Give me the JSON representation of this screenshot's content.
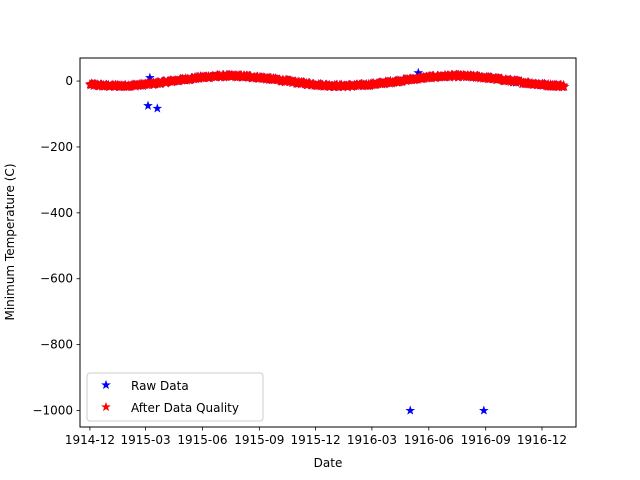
{
  "chart_data": {
    "type": "scatter",
    "xlabel": "Date",
    "ylabel": "Minimum Temperature (C)",
    "xlim": [
      "1914-11-15",
      "1917-01-25"
    ],
    "ylim": [
      -1050,
      70
    ],
    "grid": false,
    "legend_position": "bottom-left",
    "x_ticks": [
      "1914-12",
      "1915-03",
      "1915-06",
      "1915-09",
      "1915-12",
      "1916-03",
      "1916-06",
      "1916-09",
      "1916-12"
    ],
    "y_ticks": [
      0,
      -200,
      -400,
      -600,
      -800,
      -1000
    ],
    "y_tick_labels": [
      "0",
      "−200",
      "−400",
      "−600",
      "−800",
      "−1000"
    ],
    "series": [
      {
        "name": "Raw Data",
        "color": "#0000ff",
        "marker": "star",
        "daily_range": [
          "1914-12-01",
          "1917-01-06"
        ],
        "baseline": "same as After Data Quality",
        "outliers": [
          {
            "x": "1915-03-05",
            "y": -75
          },
          {
            "x": "1915-03-08",
            "y": 10
          },
          {
            "x": "1915-03-20",
            "y": -83
          },
          {
            "x": "1916-05-02",
            "y": -1000
          },
          {
            "x": "1916-05-15",
            "y": 25
          },
          {
            "x": "1916-08-29",
            "y": -1000
          },
          {
            "x": "1916-10-20",
            "y": -5
          }
        ]
      },
      {
        "name": "After Data Quality",
        "color": "#ff0000",
        "marker": "star",
        "daily_range": [
          "1914-12-01",
          "1917-01-06"
        ],
        "shape": "seasonal",
        "mean": 0,
        "amplitude": 15,
        "peak_day_of_year": 196,
        "noise": 4
      }
    ]
  }
}
